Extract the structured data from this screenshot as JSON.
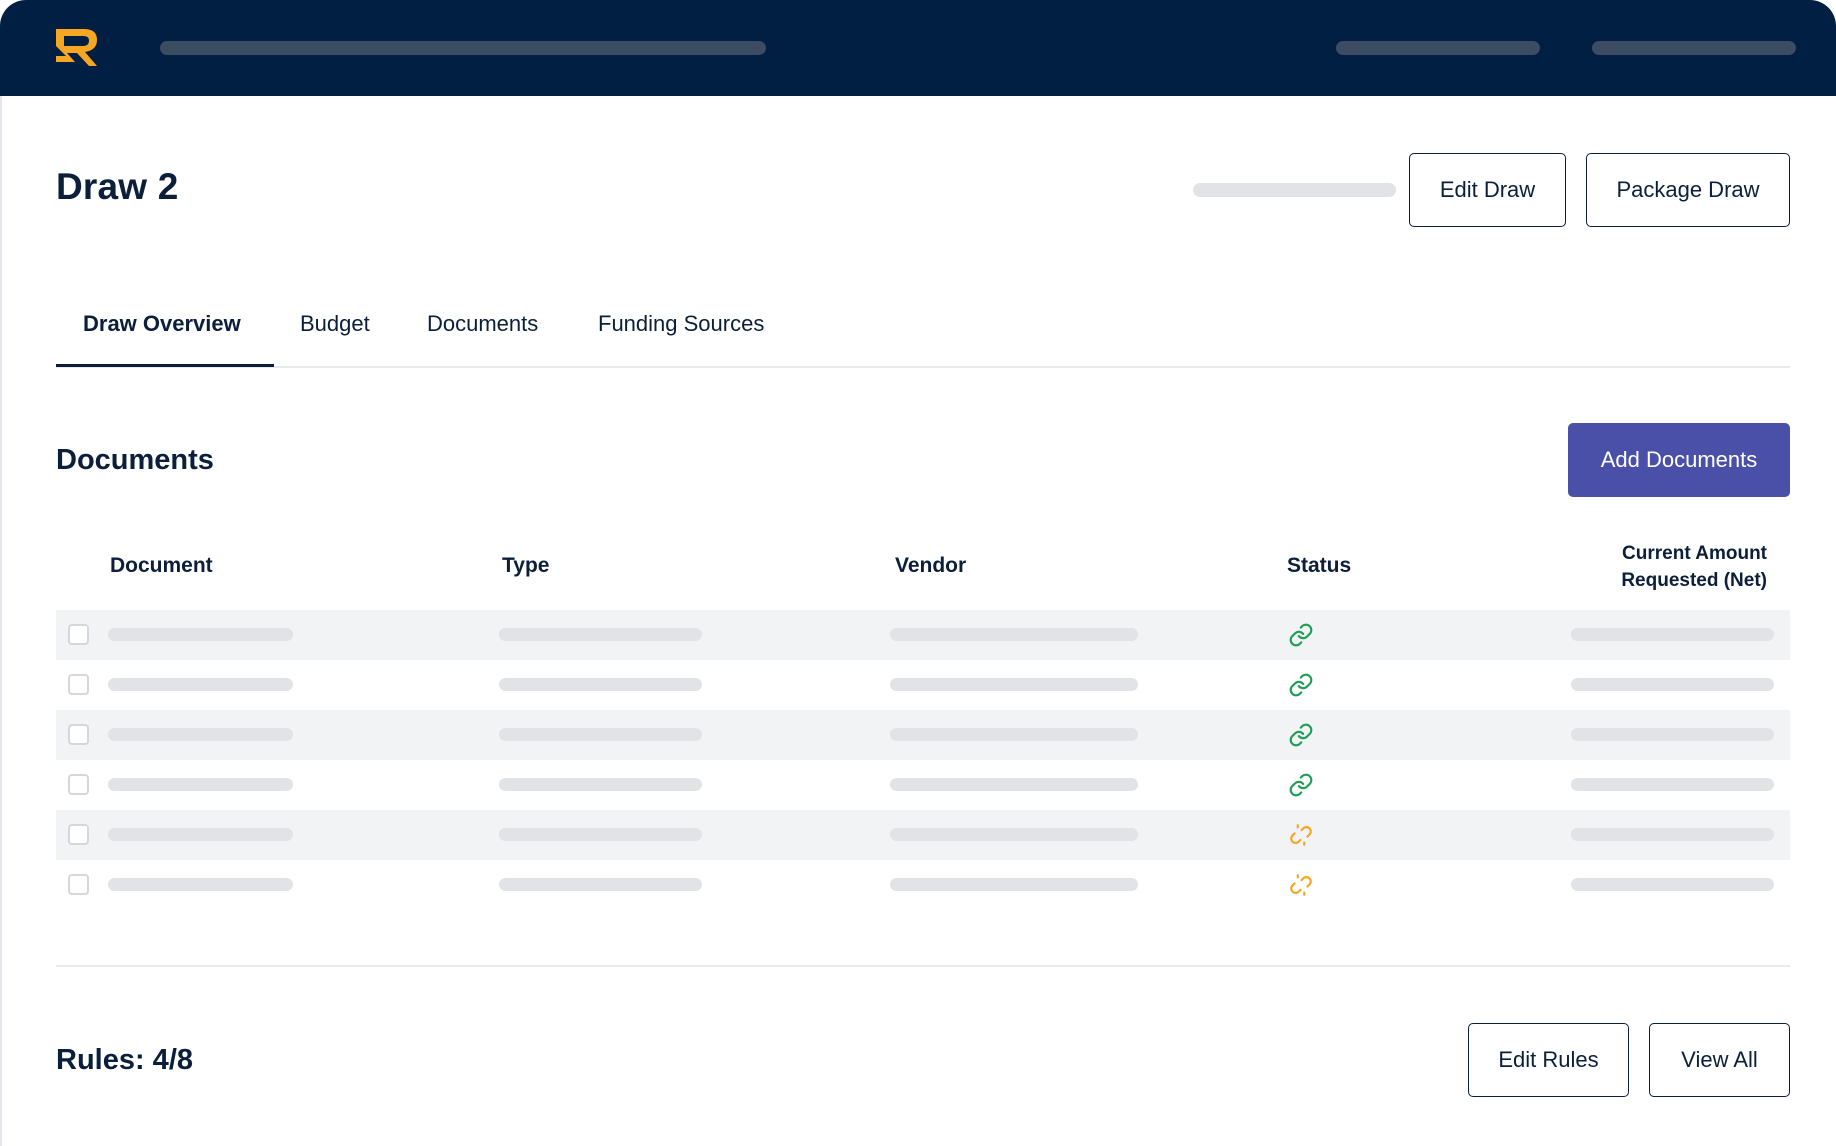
{
  "header": {
    "logo_icon": "r-logo-icon",
    "brand_color": "#f5a623",
    "bg_color": "#001f42"
  },
  "draw": {
    "title": "Draw 2",
    "edit_label": "Edit Draw",
    "package_label": "Package Draw"
  },
  "tabs": [
    {
      "label": "Draw Overview",
      "active": true
    },
    {
      "label": "Budget",
      "active": false
    },
    {
      "label": "Documents",
      "active": false
    },
    {
      "label": "Funding Sources",
      "active": false
    }
  ],
  "documents": {
    "title": "Documents",
    "add_label": "Add Documents",
    "accent_color": "#4a4fa8",
    "columns": {
      "document": "Document",
      "type": "Type",
      "vendor": "Vendor",
      "status": "Status",
      "amount_line1": "Current Amount",
      "amount_line2": "Requested (Net)"
    },
    "rows": [
      {
        "status": "linked",
        "status_icon": "link-icon",
        "color": "#1f9d55"
      },
      {
        "status": "linked",
        "status_icon": "link-icon",
        "color": "#1f9d55"
      },
      {
        "status": "linked",
        "status_icon": "link-icon",
        "color": "#1f9d55"
      },
      {
        "status": "linked",
        "status_icon": "link-icon",
        "color": "#1f9d55"
      },
      {
        "status": "unlinked",
        "status_icon": "broken-link-icon",
        "color": "#f5a623"
      },
      {
        "status": "unlinked",
        "status_icon": "broken-link-icon",
        "color": "#f5a623"
      }
    ]
  },
  "rules": {
    "title": "Rules: 4/8",
    "edit_label": "Edit Rules",
    "view_all_label": "View All"
  }
}
